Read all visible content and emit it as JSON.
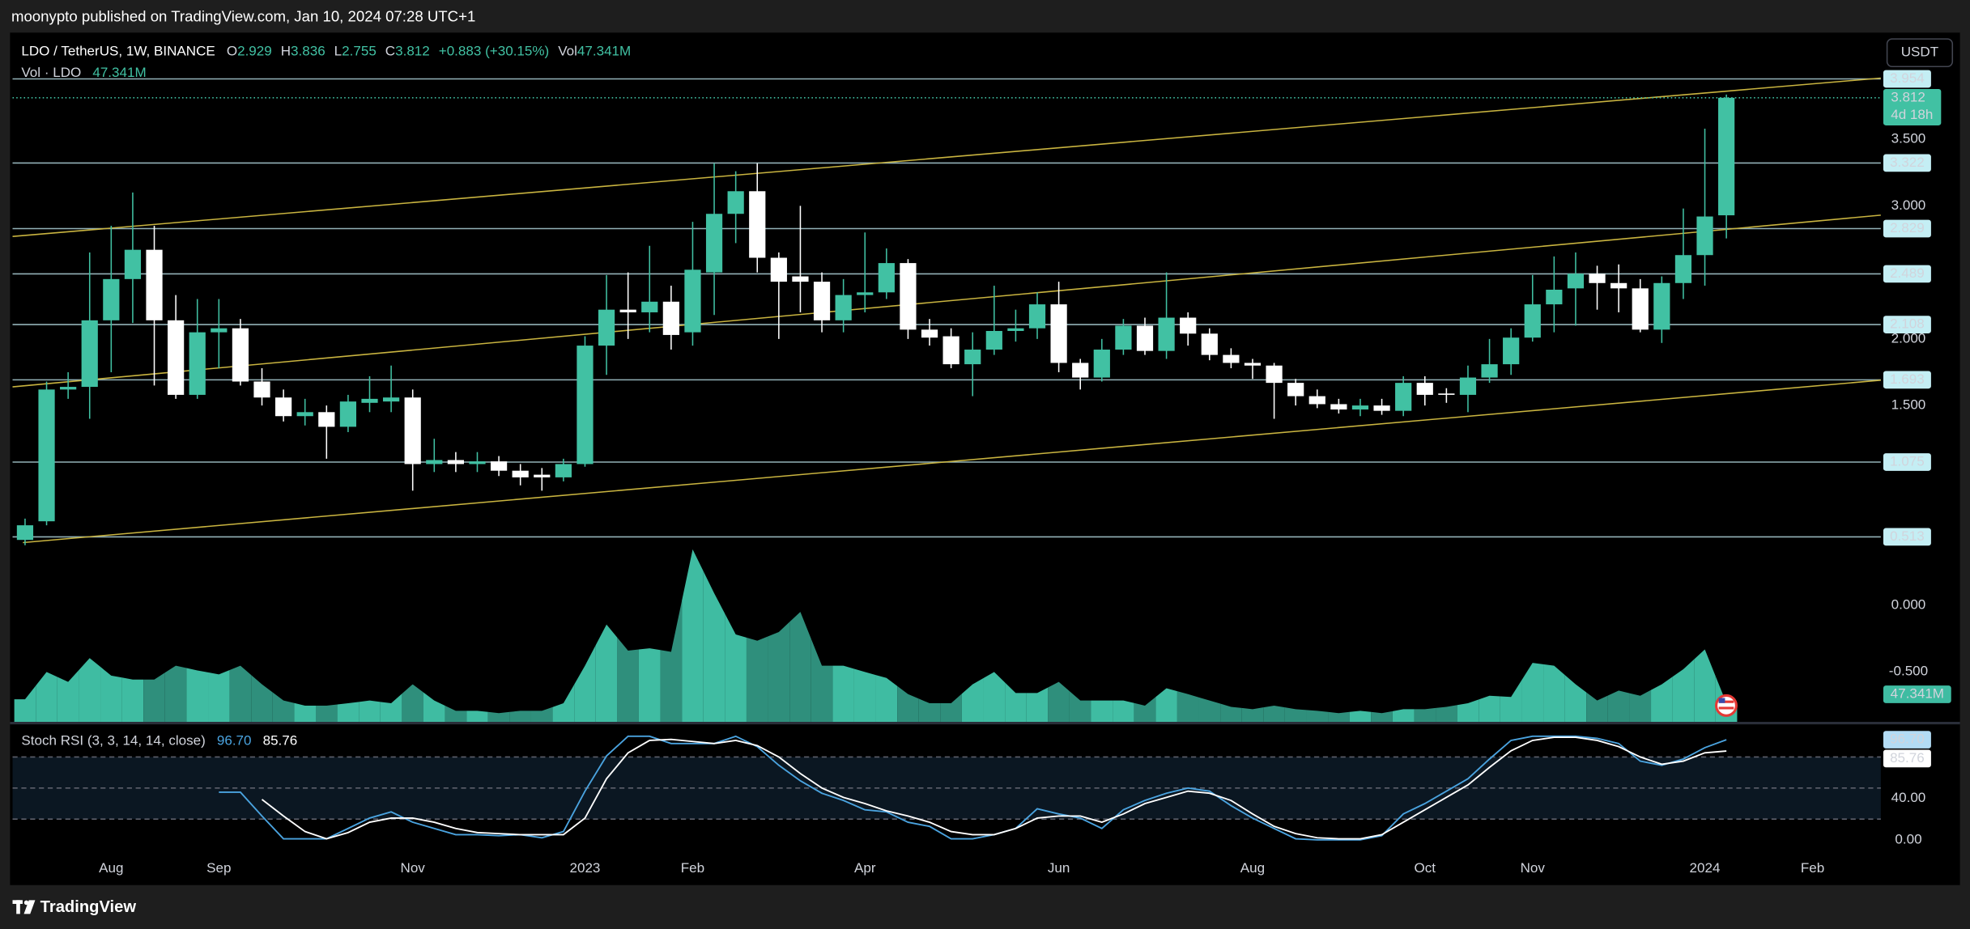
{
  "header": {
    "text": "moonypto published on TradingView.com, Jan 10, 2024 07:28 UTC+1"
  },
  "footer": {
    "brand": "TradingView"
  },
  "currency_button": "USDT",
  "chart_data": [
    {
      "type": "candlestick",
      "symbol": "LDO / TetherUS, 1W, BINANCE",
      "ohlc_keys": [
        "O",
        "H",
        "L",
        "C"
      ],
      "change": "+0.883 (+30.15%)",
      "vol_key": "Vol",
      "countdown": "4d 18h",
      "up_color": "#41c1a3",
      "down_color": "#ffffff",
      "x": [
        0,
        1,
        2,
        3,
        4,
        5,
        6,
        7,
        8,
        9,
        10,
        11,
        12,
        13,
        14,
        15,
        16,
        17,
        18,
        19,
        20,
        21,
        22,
        23,
        24,
        25,
        26,
        27,
        28,
        29,
        30,
        31,
        32,
        33,
        34,
        35,
        36,
        37,
        38,
        39,
        40,
        41,
        42,
        43,
        44,
        45,
        46,
        47,
        48,
        49,
        50,
        51,
        52,
        53,
        54,
        55,
        56,
        57,
        58,
        59,
        60,
        61,
        62,
        63,
        64,
        65,
        66,
        67,
        68,
        69,
        70,
        71,
        72,
        73,
        74,
        75,
        76,
        77,
        78,
        79
      ],
      "open": [
        0.49,
        0.63,
        1.62,
        1.64,
        2.14,
        2.45,
        2.67,
        2.14,
        1.58,
        2.05,
        2.08,
        1.68,
        1.56,
        1.42,
        1.45,
        1.34,
        1.52,
        1.53,
        1.56,
        1.06,
        1.09,
        1.06,
        1.08,
        1.01,
        0.98,
        0.96,
        1.06,
        1.95,
        2.22,
        2.2,
        2.28,
        2.05,
        2.5,
        2.94,
        3.11,
        2.61,
        2.47,
        2.43,
        2.14,
        2.33,
        2.35,
        2.57,
        2.07,
        2.02,
        1.81,
        1.92,
        2.06,
        2.08,
        2.26,
        1.82,
        1.71,
        1.92,
        2.1,
        1.91,
        2.16,
        2.04,
        1.88,
        1.82,
        1.8,
        1.67,
        1.57,
        1.51,
        1.47,
        1.5,
        1.46,
        1.67,
        1.59,
        1.58,
        1.71,
        1.81,
        2.01,
        2.26,
        2.38,
        2.49,
        2.42,
        2.38,
        2.07,
        2.42,
        2.63,
        2.929
      ],
      "high": [
        0.65,
        1.68,
        1.75,
        2.65,
        2.85,
        3.1,
        2.85,
        2.33,
        2.3,
        2.3,
        2.15,
        1.78,
        1.62,
        1.55,
        1.5,
        1.58,
        1.72,
        1.8,
        1.62,
        1.25,
        1.15,
        1.15,
        1.12,
        1.06,
        1.03,
        1.1,
        2.02,
        2.48,
        2.5,
        2.7,
        2.4,
        2.88,
        3.32,
        3.26,
        3.32,
        2.65,
        3.0,
        2.5,
        2.45,
        2.8,
        2.68,
        2.6,
        2.15,
        2.08,
        2.05,
        2.4,
        2.22,
        2.35,
        2.43,
        1.85,
        2.0,
        2.15,
        2.16,
        2.5,
        2.2,
        2.08,
        1.93,
        1.85,
        1.82,
        1.7,
        1.62,
        1.55,
        1.55,
        1.55,
        1.72,
        1.72,
        1.63,
        1.8,
        2.0,
        2.08,
        2.48,
        2.62,
        2.65,
        2.55,
        2.56,
        2.45,
        2.47,
        2.98,
        3.58,
        3.836
      ],
      "low": [
        0.45,
        0.6,
        1.55,
        1.4,
        1.75,
        2.12,
        1.65,
        1.55,
        1.55,
        1.78,
        1.65,
        1.5,
        1.38,
        1.35,
        1.1,
        1.3,
        1.45,
        1.45,
        0.86,
        1.0,
        1.0,
        1.0,
        0.97,
        0.9,
        0.86,
        0.93,
        1.04,
        1.73,
        2.0,
        2.05,
        1.92,
        1.95,
        2.18,
        2.72,
        2.5,
        2.0,
        2.2,
        2.05,
        2.05,
        2.2,
        2.3,
        2.0,
        1.95,
        1.78,
        1.57,
        1.88,
        1.98,
        2.0,
        1.75,
        1.62,
        1.68,
        1.88,
        1.88,
        1.85,
        1.95,
        1.84,
        1.78,
        1.7,
        1.4,
        1.5,
        1.48,
        1.44,
        1.42,
        1.43,
        1.42,
        1.5,
        1.52,
        1.45,
        1.67,
        1.73,
        1.98,
        2.05,
        2.1,
        2.22,
        2.2,
        2.05,
        1.97,
        2.3,
        2.4,
        2.755
      ],
      "close": [
        0.6,
        1.62,
        1.64,
        2.14,
        2.45,
        2.67,
        2.14,
        1.58,
        2.05,
        2.08,
        1.68,
        1.56,
        1.42,
        1.45,
        1.34,
        1.53,
        1.55,
        1.56,
        1.06,
        1.09,
        1.06,
        1.08,
        1.01,
        0.96,
        0.96,
        1.06,
        1.95,
        2.22,
        2.2,
        2.28,
        2.03,
        2.52,
        2.94,
        3.11,
        2.61,
        2.43,
        2.43,
        2.14,
        2.33,
        2.35,
        2.57,
        2.07,
        2.01,
        1.81,
        1.92,
        2.06,
        2.08,
        2.26,
        1.82,
        1.71,
        1.92,
        2.1,
        1.91,
        2.16,
        2.04,
        1.88,
        1.82,
        1.8,
        1.67,
        1.57,
        1.51,
        1.47,
        1.5,
        1.46,
        1.67,
        1.58,
        1.58,
        1.71,
        1.81,
        2.01,
        2.26,
        2.37,
        2.49,
        2.42,
        2.38,
        2.07,
        2.42,
        2.63,
        2.92,
        3.812
      ],
      "xlim": [
        -0.58,
        86.17
      ],
      "xticks": [
        {
          "value": 4,
          "label": "Aug"
        },
        {
          "value": 9,
          "label": "Sep"
        },
        {
          "value": 18,
          "label": "Nov"
        },
        {
          "value": 26,
          "label": "2023"
        },
        {
          "value": 31,
          "label": "Feb"
        },
        {
          "value": 39,
          "label": "Apr"
        },
        {
          "value": 48,
          "label": "Jun"
        },
        {
          "value": 57,
          "label": "Aug"
        },
        {
          "value": 65,
          "label": "Oct"
        },
        {
          "value": 70,
          "label": "Nov"
        },
        {
          "value": 78,
          "label": "2024"
        },
        {
          "value": 83,
          "label": "Feb"
        }
      ],
      "ylim": [
        -0.877,
        4.292
      ],
      "yticks": [
        {
          "value": 3.5,
          "label": "3.500"
        },
        {
          "value": 3,
          "label": "3.000"
        },
        {
          "value": 2,
          "label": "2.000"
        },
        {
          "value": 1.5,
          "label": "1.500"
        },
        {
          "value": 0,
          "label": "0.000"
        },
        {
          "value": -0.5,
          "label": "-0.500"
        }
      ],
      "levels": [
        3.954,
        3.322,
        2.829,
        2.489,
        2.108,
        1.693,
        1.075,
        0.513
      ],
      "level_color": "#c4eef4",
      "trendline_color": "#c9b440",
      "trendlines": [
        {
          "points": [
            [
              -0.58,
              2.77
            ],
            [
              86.17,
              3.96
            ]
          ]
        },
        {
          "points": [
            [
              -0.58,
              1.64
            ],
            [
              86.17,
              2.93
            ]
          ]
        },
        {
          "points": [
            [
              -0.1,
              0.47
            ],
            [
              86.17,
              1.69
            ]
          ]
        }
      ]
    },
    {
      "type": "area",
      "name": "Vol · LDO",
      "up_color": "#3fbca2",
      "down_color": "#2f8f7c",
      "values": [
        57,
        126,
        101,
        161,
        117,
        107,
        107,
        142,
        130,
        120,
        142,
        95,
        54,
        41,
        41,
        47,
        54,
        47,
        95,
        54,
        28,
        28,
        22,
        28,
        28,
        47,
        142,
        246,
        180,
        186,
        177,
        436,
        325,
        221,
        205,
        227,
        278,
        142,
        142,
        126,
        111,
        70,
        47,
        47,
        95,
        126,
        73,
        73,
        101,
        54,
        54,
        54,
        41,
        85,
        70,
        54,
        38,
        32,
        41,
        32,
        28,
        22,
        28,
        22,
        32,
        32,
        38,
        47,
        66,
        63,
        149,
        142,
        95,
        54,
        79,
        66,
        95,
        133,
        183,
        47.341
      ],
      "last_label": "47.341M",
      "ylim": [
        0,
        460
      ]
    },
    {
      "type": "line",
      "title": "Stoch RSI (3, 3, 14, 14, close)",
      "ylim": [
        -15.8,
        111.5
      ],
      "yticks": [
        {
          "value": 0,
          "label": "0.00"
        },
        {
          "value": 40,
          "label": "40.00"
        }
      ],
      "bands": [
        80,
        50,
        20
      ],
      "band_fill": "#0b1722",
      "series": [
        {
          "color": "#4aa3df",
          "last_label": "96.70",
          "values": [
            null,
            null,
            null,
            null,
            null,
            null,
            null,
            null,
            null,
            46,
            46,
            23,
            1,
            1,
            1,
            11,
            21,
            27,
            17,
            11,
            5,
            5,
            4,
            5,
            2,
            8,
            47,
            81,
            100,
            100,
            93,
            93,
            93,
            100,
            90,
            72,
            57,
            45,
            38,
            29,
            27,
            17,
            13,
            1,
            1,
            5,
            11,
            30,
            25,
            21,
            11,
            29,
            38,
            45,
            50,
            47,
            33,
            21,
            11,
            1,
            0,
            0,
            0,
            4,
            25,
            35,
            47,
            59,
            78,
            96,
            100,
            100,
            100,
            98,
            93,
            76,
            72,
            78,
            89,
            96.7
          ]
        },
        {
          "color": "#ffffff",
          "last_label": "85.76",
          "values": [
            null,
            null,
            null,
            null,
            null,
            null,
            null,
            null,
            null,
            null,
            null,
            39,
            23,
            8,
            1,
            7,
            17,
            21,
            21,
            17,
            11,
            7,
            6,
            5,
            5,
            5,
            21,
            59,
            84,
            96,
            97,
            95,
            93,
            96,
            91,
            80,
            64,
            50,
            41,
            35,
            28,
            23,
            17,
            8,
            5,
            5,
            11,
            21,
            23,
            23,
            17,
            25,
            35,
            41,
            47,
            45,
            38,
            25,
            13,
            6,
            2,
            1,
            1,
            5,
            17,
            29,
            41,
            53,
            70,
            86,
            96,
            99,
            99,
            96,
            90,
            80,
            73,
            76,
            84,
            85.76
          ]
        }
      ]
    }
  ]
}
